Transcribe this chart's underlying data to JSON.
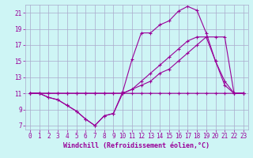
{
  "xlabel": "Windchill (Refroidissement éolien,°C)",
  "background_color": "#cef5f5",
  "grid_color": "#aaaacc",
  "line_color": "#990099",
  "x_data": [
    0,
    1,
    2,
    3,
    4,
    5,
    6,
    7,
    8,
    9,
    10,
    11,
    12,
    13,
    14,
    15,
    16,
    17,
    18,
    19,
    20,
    21,
    22,
    23
  ],
  "line1": [
    11,
    11,
    10.5,
    10.2,
    9.5,
    8.8,
    7.8,
    7.0,
    8.2,
    8.5,
    11.0,
    11.0,
    11.0,
    11.0,
    11.0,
    11.0,
    11.0,
    11.0,
    11.0,
    11.0,
    11.0,
    11.0,
    11.0,
    11.0
  ],
  "line2": [
    11,
    11,
    10.5,
    10.2,
    9.5,
    8.8,
    7.8,
    7.0,
    8.2,
    8.5,
    11.2,
    15.2,
    18.5,
    18.5,
    19.5,
    20.0,
    21.2,
    21.8,
    21.3,
    18.5,
    15.0,
    12.5,
    11.0,
    11.0
  ],
  "line3": [
    11,
    11,
    11,
    11,
    11,
    11,
    11,
    11,
    11,
    11,
    11,
    11.5,
    12.0,
    12.5,
    13.5,
    14.0,
    15.0,
    16.0,
    17.0,
    18.0,
    15.0,
    12.0,
    11.0,
    11.0
  ],
  "line4": [
    11,
    11,
    11,
    11,
    11,
    11,
    11,
    11,
    11,
    11,
    11,
    11.5,
    12.5,
    13.5,
    14.5,
    15.5,
    16.5,
    17.5,
    18.0,
    18.0,
    18.0,
    18.0,
    11.0,
    11.0
  ],
  "xlim": [
    -0.5,
    23.5
  ],
  "ylim": [
    6.5,
    22.0
  ],
  "yticks": [
    7,
    9,
    11,
    13,
    15,
    17,
    19,
    21
  ],
  "xticks": [
    0,
    1,
    2,
    3,
    4,
    5,
    6,
    7,
    8,
    9,
    10,
    11,
    12,
    13,
    14,
    15,
    16,
    17,
    18,
    19,
    20,
    21,
    22,
    23
  ],
  "tick_fontsize": 5.5,
  "xlabel_fontsize": 6.0
}
